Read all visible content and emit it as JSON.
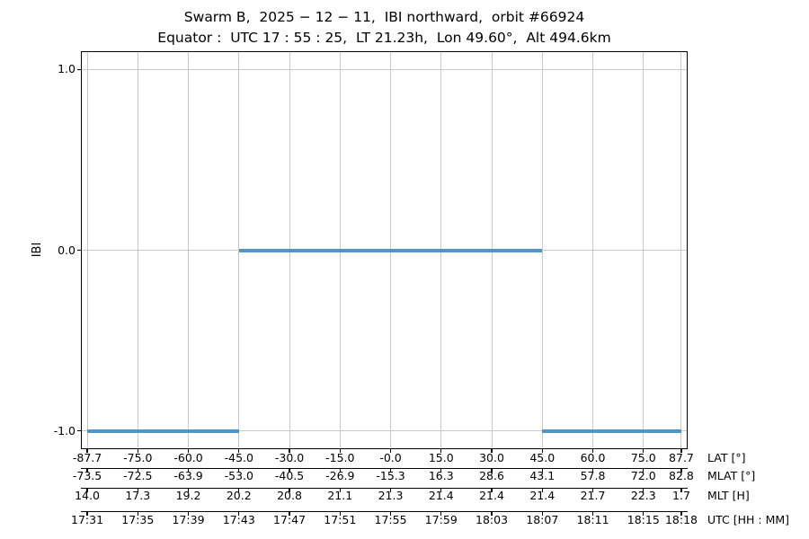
{
  "figure": {
    "title": "Swarm B,  2025 − 12 − 11,  IBI northward,  orbit #66924",
    "subtitle": "Equator :  UTC 17 : 55 : 25,  LT 21.23h,  Lon 49.60°,  Alt 494.6km",
    "ylabel": "IBI"
  },
  "chart_data": {
    "type": "line",
    "title": "Swarm B, 2025 − 12 − 11, IBI northward, orbit #66924",
    "subtitle": "Equator : UTC 17 : 55 : 25, LT 21.23h, Lon 49.60°, Alt 494.6km",
    "ylabel": "IBI",
    "ylim": [
      -1.1,
      1.1
    ],
    "grid": true,
    "legend": "none",
    "yticks": [
      {
        "value": 1.0,
        "label": "1.0"
      },
      {
        "value": 0.0,
        "label": "0.0"
      },
      {
        "value": -1.0,
        "label": "-1.0"
      }
    ],
    "x_axis": {
      "unit": "minutes since 17:31 UTC",
      "xlim": [
        -0.5,
        47.5
      ],
      "tick_minutes": [
        0,
        4,
        8,
        12,
        16,
        20,
        24,
        28,
        32,
        36,
        40,
        44,
        47
      ]
    },
    "axis_rows": [
      {
        "label": "LAT [°]",
        "values": [
          "-87.7",
          "-75.0",
          "-60.0",
          "-45.0",
          "-30.0",
          "-15.0",
          "-0.0",
          "15.0",
          "30.0",
          "45.0",
          "60.0",
          "75.0",
          "87.7"
        ]
      },
      {
        "label": "MLAT [°]",
        "values": [
          "-73.5",
          "-72.5",
          "-63.9",
          "-53.0",
          "-40.5",
          "-26.9",
          "-15.3",
          "16.3",
          "28.6",
          "43.1",
          "57.8",
          "72.0",
          "82.8"
        ]
      },
      {
        "label": "MLT [H]",
        "values": [
          "14.0",
          "17.3",
          "19.2",
          "20.2",
          "20.8",
          "21.1",
          "21.3",
          "21.4",
          "21.4",
          "21.4",
          "21.7",
          "22.3",
          "1.7"
        ]
      },
      {
        "label": "UTC [HH : MM]",
        "values": [
          "17:31",
          "17:35",
          "17:39",
          "17:43",
          "17:47",
          "17:51",
          "17:55",
          "17:59",
          "18:03",
          "18:07",
          "18:11",
          "18:15",
          "18:18"
        ]
      }
    ],
    "series": [
      {
        "name": "IBI",
        "color": "#4f97c8",
        "line_width": 4,
        "segments": [
          {
            "y": -1.0,
            "t_start": 0,
            "t_end": 12
          },
          {
            "y": 0.0,
            "t_start": 12,
            "t_end": 36
          },
          {
            "y": -1.0,
            "t_start": 36,
            "t_end": 47
          }
        ]
      }
    ],
    "colors": {
      "line": "#4f97c8",
      "grid": "#c9c9c9",
      "spine": "#000000",
      "text": "#000000",
      "background": "#ffffff"
    }
  }
}
